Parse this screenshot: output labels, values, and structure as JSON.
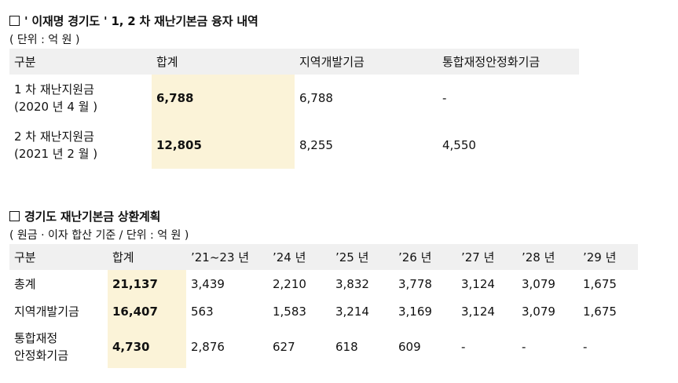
{
  "section1": {
    "title": "' 이재명 경기도 ' 1, 2 차 재난기본금 융자 내역",
    "unit": "( 단위 : 억 원 )",
    "headers": [
      "구분",
      "합계",
      "지역개발기금",
      "통합재정안정화기금"
    ],
    "rows": [
      {
        "label_line1": "1 차 재난지원금",
        "label_line2": "(2020 년 4 월 )",
        "total": "6,788",
        "regional": "6,788",
        "stabilization": "-"
      },
      {
        "label_line1": "2 차 재난지원금",
        "label_line2": "(2021 년 2 월 )",
        "total": "12,805",
        "regional": "8,255",
        "stabilization": "4,550"
      }
    ]
  },
  "section2": {
    "title": "경기도 재난기본금 상환계획",
    "unit": "( 원금 · 이자 합산 기준 / 단위 : 억 원 )",
    "headers": [
      "구분",
      "합계",
      "’21~23 년",
      "’24 년",
      "’25 년",
      "’26 년",
      "’27 년",
      "’28 년",
      "’29 년"
    ],
    "rows": [
      {
        "label_line1": "총계",
        "label_line2": "",
        "values": [
          "21,137",
          "3,439",
          "2,210",
          "3,832",
          "3,778",
          "3,124",
          "3,079",
          "1,675"
        ]
      },
      {
        "label_line1": "지역개발기금",
        "label_line2": "",
        "values": [
          "16,407",
          "563",
          "1,583",
          "3,214",
          "3,169",
          "3,124",
          "3,079",
          "1,675"
        ]
      },
      {
        "label_line1": "통합재정",
        "label_line2": "안정화기금",
        "values": [
          "4,730",
          "2,876",
          "627",
          "618",
          "609",
          "-",
          "-",
          "-"
        ]
      }
    ]
  },
  "colors": {
    "header_bg": "#f0f0f0",
    "highlight_bg": "#fbf3d8"
  }
}
